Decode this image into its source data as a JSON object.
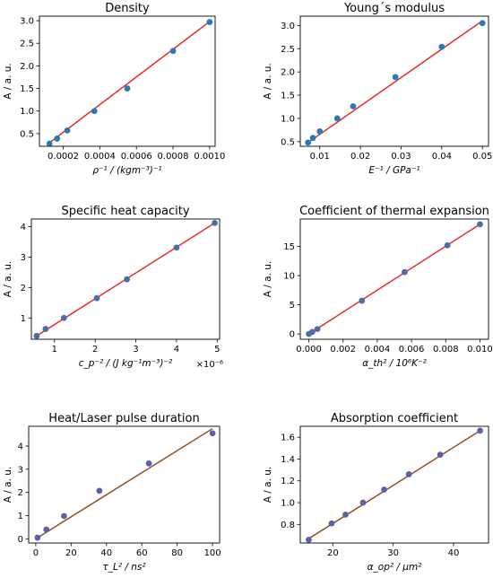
{
  "figure": {
    "point_color": "#1f77b4",
    "marker_colors": [
      "#2a78b6",
      "#2a78b6",
      "#4a6fa8",
      "#4a6fa8",
      "#5e5fa6",
      "#5e5fa6"
    ],
    "fit_colors": [
      "#e8201e",
      "#e8201e",
      "#e8201e",
      "#e8201e",
      "#8b4a1c",
      "#8b4a1c"
    ]
  },
  "chart_data": [
    {
      "type": "scatter",
      "title": "Density",
      "xlabel": "ρ⁻¹  /  (kgm⁻³)⁻¹",
      "ylabel": "A / a. u.",
      "xlim": [
        7e-05,
        0.00103
      ],
      "ylim": [
        0.22,
        3.1
      ],
      "xticks": [
        0.0002,
        0.0004,
        0.0006,
        0.0008,
        0.001
      ],
      "xtick_labels": [
        "0.0002",
        "0.0004",
        "0.0006",
        "0.0008",
        "0.0010"
      ],
      "yticks": [
        0.5,
        1.0,
        1.5,
        2.0,
        2.5,
        3.0
      ],
      "ytick_labels": [
        "0.5",
        "1.0",
        "1.5",
        "2.0",
        "2.5",
        "3.0"
      ],
      "x_offset_label": "",
      "grid": false,
      "series": [
        {
          "x": [
            0.000125,
            0.000167,
            0.000222,
            0.00037,
            0.00055,
            0.0008,
            0.001
          ],
          "y": [
            0.28,
            0.39,
            0.57,
            1.0,
            1.5,
            2.33,
            2.97
          ]
        }
      ],
      "fit_line": {
        "x": [
          0.000125,
          0.001
        ],
        "y": [
          0.3,
          2.98
        ]
      }
    },
    {
      "type": "scatter",
      "title": "Young´s modulus",
      "xlabel": "E⁻¹  /  GPa⁻¹",
      "ylabel": "A / a. u.",
      "xlim": [
        0.0052,
        0.0515
      ],
      "ylim": [
        0.4,
        3.2
      ],
      "xticks": [
        0.01,
        0.02,
        0.03,
        0.04,
        0.05
      ],
      "xtick_labels": [
        "0.01",
        "0.02",
        "0.03",
        "0.04",
        "0.05"
      ],
      "yticks": [
        0.5,
        1.0,
        1.5,
        2.0,
        2.5,
        3.0
      ],
      "ytick_labels": [
        "0.5",
        "1.0",
        "1.5",
        "2.0",
        "2.5",
        "3.0"
      ],
      "x_offset_label": "",
      "grid": false,
      "series": [
        {
          "x": [
            0.0071,
            0.0083,
            0.01,
            0.0143,
            0.0182,
            0.0286,
            0.04,
            0.05
          ],
          "y": [
            0.48,
            0.58,
            0.72,
            1.0,
            1.26,
            1.89,
            2.54,
            3.05
          ]
        }
      ],
      "fit_line": {
        "x": [
          0.0071,
          0.05
        ],
        "y": [
          0.48,
          3.1
        ]
      }
    },
    {
      "type": "scatter",
      "title": "Specific heat capacity",
      "xlabel": "c_p⁻²  /  (J kg⁻¹m⁻³)⁻²",
      "ylabel": "A / a. u.",
      "xlim": [
        0.43,
        5.06
      ],
      "ylim": [
        0.3,
        4.25
      ],
      "xticks": [
        1,
        2,
        3,
        4,
        5
      ],
      "xtick_labels": [
        "1",
        "2",
        "3",
        "4",
        "5"
      ],
      "yticks": [
        1,
        2,
        3,
        4
      ],
      "ytick_labels": [
        "1",
        "2",
        "3",
        "4"
      ],
      "x_offset_label": "×10⁻⁶",
      "grid": false,
      "series": [
        {
          "x": [
            0.56,
            0.78,
            1.23,
            2.04,
            2.78,
            4.0,
            4.94
          ],
          "y": [
            0.41,
            0.64,
            1.0,
            1.65,
            2.27,
            3.31,
            4.12
          ]
        }
      ],
      "fit_line": {
        "x": [
          0.56,
          4.94
        ],
        "y": [
          0.41,
          4.12
        ]
      }
    },
    {
      "type": "scatter",
      "title": "Coefficient of thermal expansion",
      "xlabel": "α_th²  /  10⁶K⁻²",
      "ylabel": "A / a. u.",
      "xlim": [
        -0.0005,
        0.0105
      ],
      "ylim": [
        -0.9,
        19.7
      ],
      "xticks": [
        0.0,
        0.002,
        0.004,
        0.006,
        0.008,
        0.01
      ],
      "xtick_labels": [
        "0.000",
        "0.002",
        "0.004",
        "0.006",
        "0.008",
        "0.010"
      ],
      "yticks": [
        0,
        5,
        10,
        15
      ],
      "ytick_labels": [
        "0",
        "5",
        "10",
        "15"
      ],
      "x_offset_label": "",
      "grid": false,
      "series": [
        {
          "x": [
            0.0,
            0.0002,
            0.0005,
            0.0031,
            0.0056,
            0.0081,
            0.01
          ],
          "y": [
            0.0,
            0.35,
            0.85,
            5.7,
            10.6,
            15.2,
            18.8
          ]
        }
      ],
      "fit_line": {
        "x": [
          0.0,
          0.01
        ],
        "y": [
          0.0,
          18.8
        ]
      }
    },
    {
      "type": "scatter",
      "title": "Heat/Laser pulse duration",
      "xlabel": "τ_L²  /  ns²",
      "ylabel": "A / a. u.",
      "xlim": [
        -4,
        104
      ],
      "ylim": [
        -0.18,
        4.85
      ],
      "xticks": [
        0,
        20,
        40,
        60,
        80,
        100
      ],
      "xtick_labels": [
        "0",
        "20",
        "40",
        "60",
        "80",
        "100"
      ],
      "yticks": [
        0,
        1,
        2,
        3,
        4
      ],
      "ytick_labels": [
        "0",
        "1",
        "2",
        "3",
        "4"
      ],
      "x_offset_label": "",
      "grid": false,
      "series": [
        {
          "x": [
            1,
            6,
            16,
            36,
            64,
            100
          ],
          "y": [
            0.05,
            0.4,
            0.98,
            2.07,
            3.25,
            4.55
          ]
        }
      ],
      "fit_line": {
        "x": [
          0,
          100
        ],
        "y": [
          0.0,
          4.75
        ]
      }
    },
    {
      "type": "scatter",
      "title": "Absorption coefficient",
      "xlabel": "α_op²  /  μm²",
      "ylabel": "A / a. u.",
      "xlim": [
        14.6,
        45.8
      ],
      "ylim": [
        0.63,
        1.7
      ],
      "xticks": [
        20,
        30,
        40
      ],
      "xtick_labels": [
        "20",
        "30",
        "40"
      ],
      "yticks": [
        0.8,
        1.0,
        1.2,
        1.4,
        1.6
      ],
      "ytick_labels": [
        "0.8",
        "1.0",
        "1.2",
        "1.4",
        "1.6"
      ],
      "x_offset_label": "",
      "grid": false,
      "series": [
        {
          "x": [
            16.0,
            19.8,
            22.1,
            25.0,
            28.5,
            32.6,
            37.8,
            44.4
          ],
          "y": [
            0.66,
            0.81,
            0.89,
            1.0,
            1.12,
            1.26,
            1.44,
            1.66
          ]
        }
      ],
      "fit_line": {
        "x": [
          16.0,
          44.4
        ],
        "y": [
          0.67,
          1.66
        ]
      }
    }
  ]
}
